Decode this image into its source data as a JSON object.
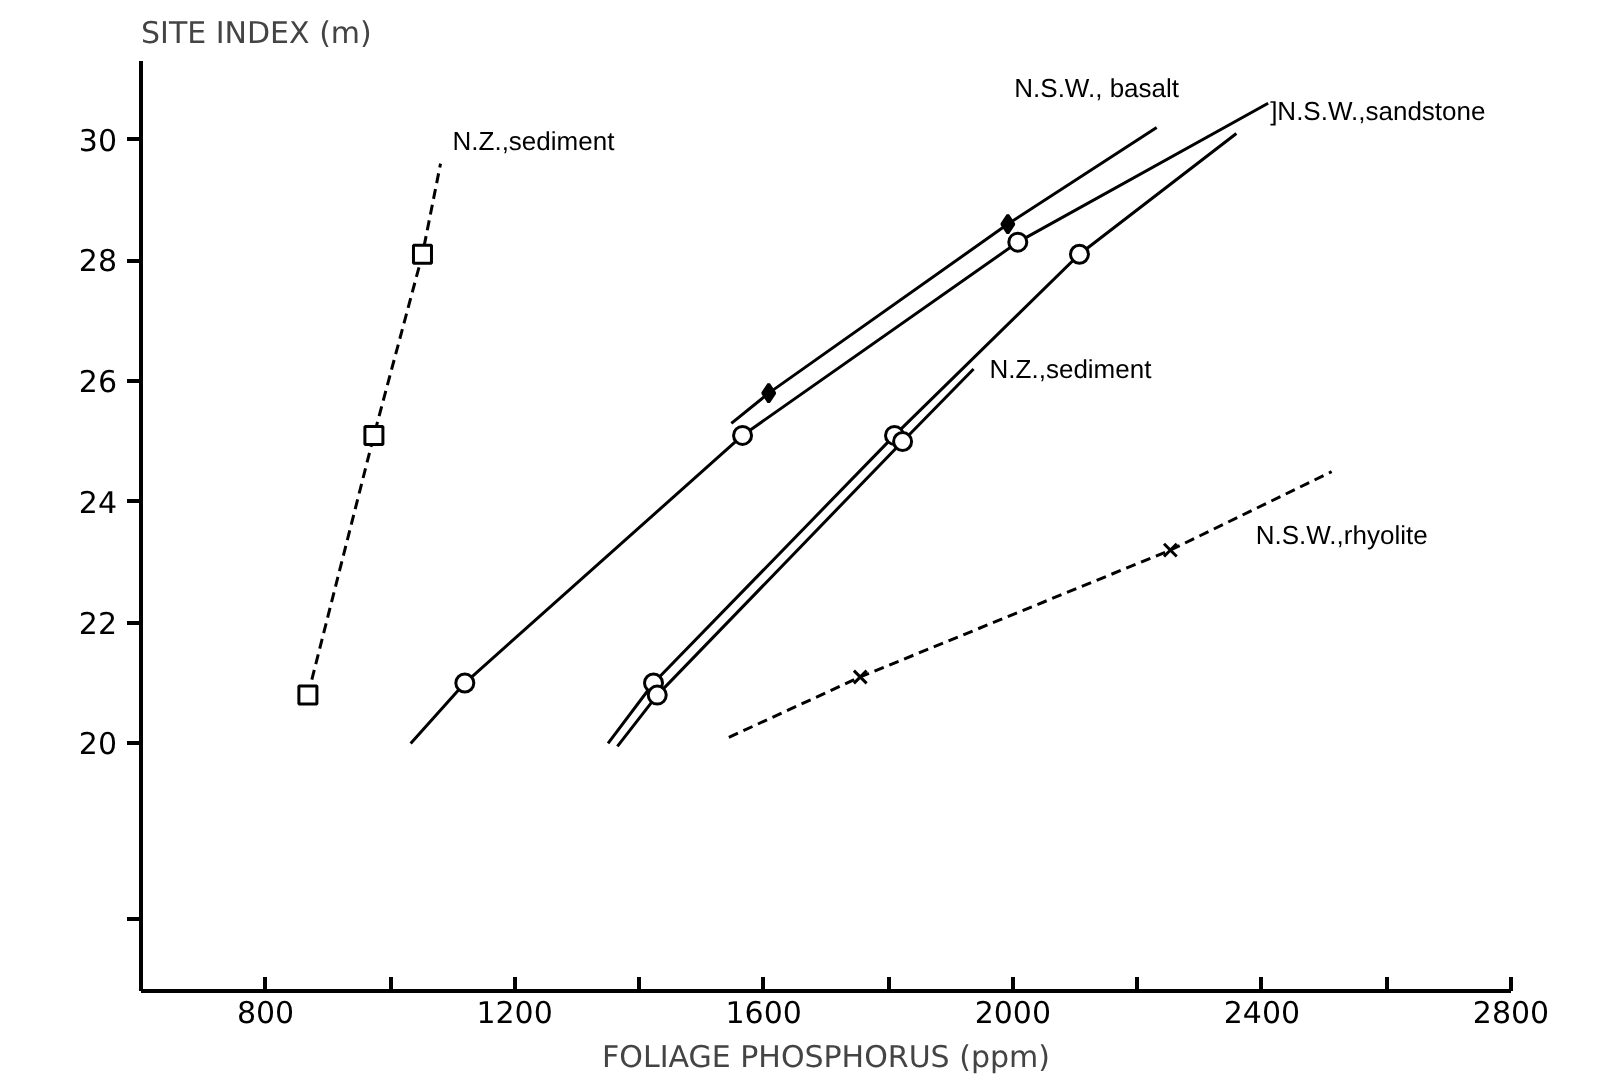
{
  "chart_data": {
    "type": "line",
    "xlabel": "FOLIAGE PHOSPHORUS (ppm)",
    "ylabel": "SITE INDEX (m)",
    "xlim": [
      600,
      2800
    ],
    "ylim": [
      15.9,
      31.3
    ],
    "xticks": [
      800,
      {
        "value": 1000,
        "label": null
      },
      1200,
      {
        "value": 1400,
        "label": null
      },
      1600,
      {
        "value": 1800,
        "label": null
      },
      2000,
      {
        "value": 2200,
        "label": null
      },
      2400,
      {
        "value": 2600,
        "label": null
      },
      2800
    ],
    "yticks": [
      {
        "value": 17.1,
        "label": null
      },
      20,
      22,
      24,
      26,
      28,
      30
    ],
    "grid": false,
    "series": [
      {
        "name": "N.Z.,sediment",
        "color": "#000000",
        "line_style": "dashed",
        "x": [
          868,
          974,
          1052,
          1081
        ],
        "values": [
          20.8,
          25.1,
          28.1,
          29.6
        ]
      },
      {
        "type": "scatter",
        "color": "#000000",
        "marker": "square",
        "x": [
          868,
          974,
          1052
        ],
        "values": [
          20.8,
          25.1,
          28.1
        ]
      },
      {
        "name": "]N.S.W.,sandstone",
        "color": "#000000",
        "line_style": "solid",
        "x": [
          1033,
          1120,
          1566,
          2008,
          2410
        ],
        "values": [
          20.0,
          21.0,
          25.1,
          28.3,
          30.6
        ]
      },
      {
        "type": "scatter",
        "color": "#000000",
        "marker": "circle",
        "x": [
          1120,
          1566,
          2008
        ],
        "values": [
          21.0,
          25.1,
          28.3
        ]
      },
      {
        "name": "N.S.W., basalt",
        "color": "#000000",
        "line_style": "solid",
        "x": [
          1548,
          1608,
          1992,
          2231
        ],
        "values": [
          25.3,
          25.8,
          28.6,
          30.2
        ]
      },
      {
        "type": "scatter",
        "color": "#000000",
        "marker": "diamond",
        "x": [
          1608,
          1992
        ],
        "values": [
          25.8,
          28.6
        ]
      },
      {
        "color": "#000000",
        "line_style": "solid",
        "x": [
          1350,
          1423,
          1810,
          2107,
          2359
        ],
        "values": [
          20.0,
          21.0,
          25.1,
          28.1,
          30.1
        ]
      },
      {
        "type": "scatter",
        "color": "#000000",
        "marker": "circle",
        "x": [
          1423,
          1810,
          2107
        ],
        "values": [
          21.0,
          25.1,
          28.1
        ]
      },
      {
        "name": "N.Z.,sediment",
        "color": "#000000",
        "line_style": "solid",
        "x": [
          1365,
          1429,
          1823,
          1937
        ],
        "values": [
          19.95,
          20.8,
          25.0,
          26.2
        ]
      },
      {
        "type": "scatter",
        "color": "#000000",
        "marker": "circle",
        "x": [
          1429,
          1823
        ],
        "values": [
          20.8,
          25.0
        ]
      },
      {
        "name": "N.S.W.,rhyolite",
        "color": "#000000",
        "line_style": "dashed",
        "x": [
          1544,
          1755,
          2253,
          2512
        ],
        "values": [
          20.1,
          21.1,
          23.2,
          24.5
        ]
      },
      {
        "type": "scatter",
        "color": "#000000",
        "marker": "cross",
        "x": [
          1755,
          2253
        ],
        "values": [
          21.1,
          23.2
        ]
      }
    ]
  }
}
